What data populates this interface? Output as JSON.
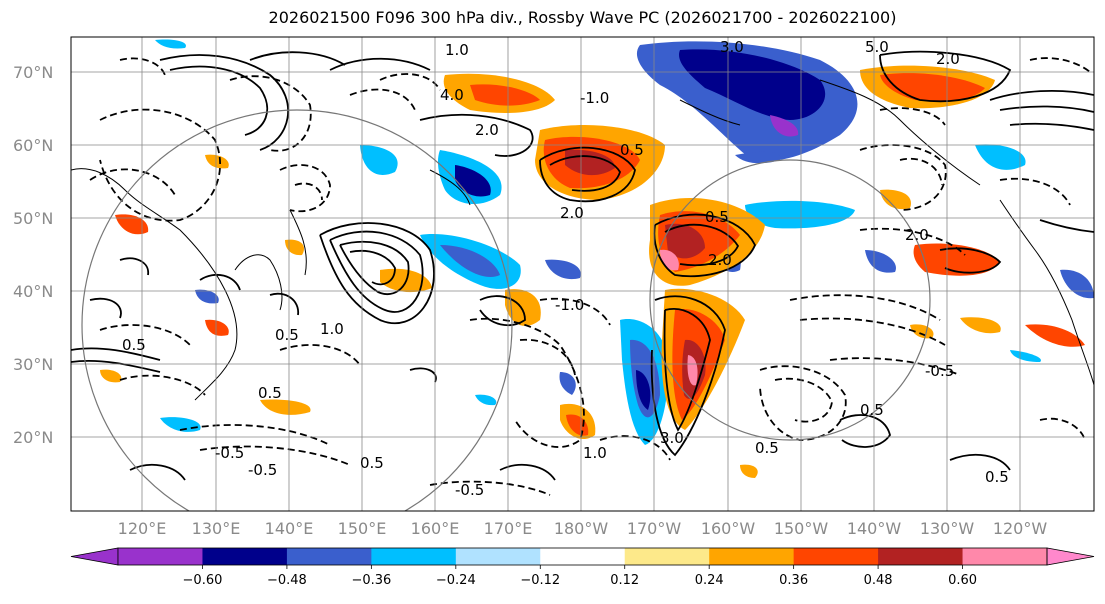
{
  "title": "2026021500 F096 300 hPa div., Rossby Wave PC (2026021700 - 2026022100)",
  "latitude_labels": [
    "70°N",
    "60°N",
    "50°N",
    "40°N",
    "30°N",
    "20°N"
  ],
  "longitude_labels": [
    "120°E",
    "130°E",
    "140°E",
    "150°E",
    "160°E",
    "170°E",
    "180°W",
    "170°W",
    "160°W",
    "150°W",
    "140°W",
    "130°W",
    "120°W"
  ],
  "contour_labels": [
    "-1.0",
    "-0.5",
    "0.5",
    "1.0",
    "2.0",
    "3.0",
    "4.0",
    "5.0"
  ],
  "colorbar": {
    "ticks": [
      "−0.60",
      "−0.48",
      "−0.36",
      "−0.24",
      "−0.12",
      "0.12",
      "0.24",
      "0.36",
      "0.48",
      "0.60"
    ],
    "colors": [
      "#9932cc",
      "#00008b",
      "#3a5fcd",
      "#00bfff",
      "#b0e2ff",
      "#ffffff",
      "#fde98a",
      "#ffa500",
      "#ff4500",
      "#b22222",
      "#ff88aa",
      "#ff88cc"
    ]
  }
}
